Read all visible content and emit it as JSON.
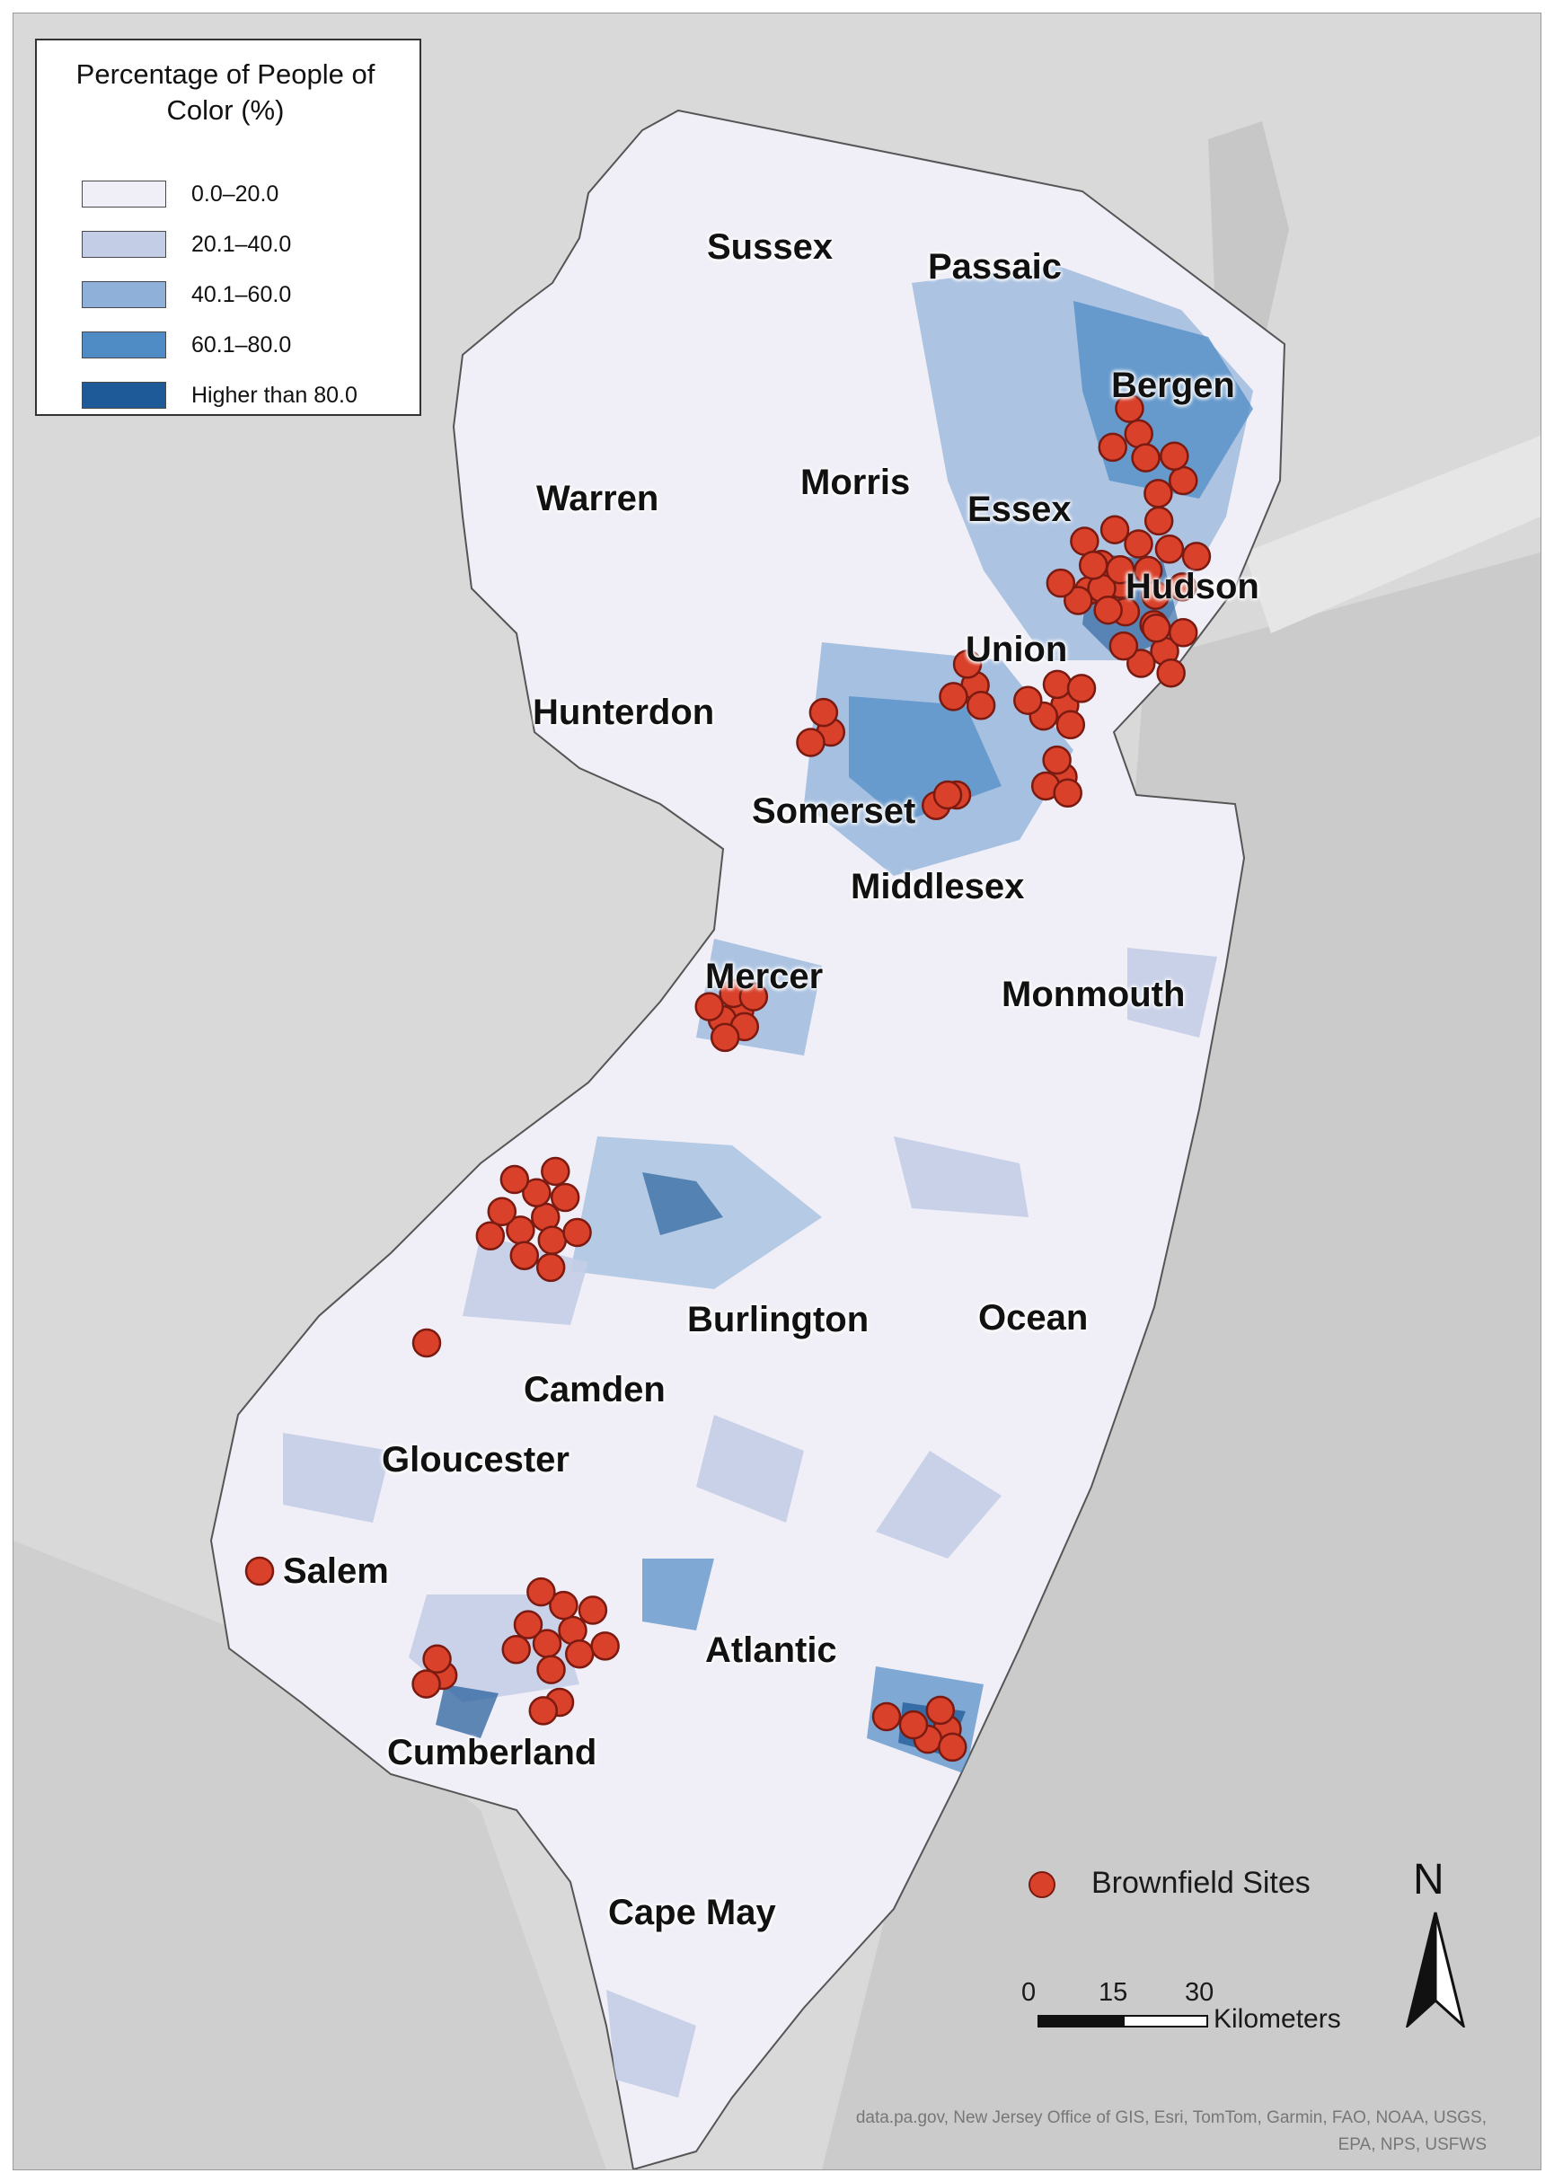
{
  "legend": {
    "title": "Percentage of People of Color (%)",
    "classes": [
      {
        "label": "0.0–20.0",
        "color": "#f0eff7"
      },
      {
        "label": "20.1–40.0",
        "color": "#c3cde6"
      },
      {
        "label": "40.1–60.0",
        "color": "#8eb0d9"
      },
      {
        "label": "60.1–80.0",
        "color": "#4f8cc5"
      },
      {
        "label": "Higher than 80.0",
        "color": "#1f5a98"
      }
    ]
  },
  "counties": {
    "sussex": "Sussex",
    "passaic": "Passaic",
    "bergen": "Bergen",
    "warren": "Warren",
    "morris": "Morris",
    "essex": "Essex",
    "hudson": "Hudson",
    "union": "Union",
    "hunterdon": "Hunterdon",
    "somerset": "Somerset",
    "middlesex": "Middlesex",
    "mercer": "Mercer",
    "monmouth": "Monmouth",
    "burlington": "Burlington",
    "ocean": "Ocean",
    "camden": "Camden",
    "gloucester": "Gloucester",
    "salem": "Salem",
    "atlantic": "Atlantic",
    "cumberland": "Cumberland",
    "cape_may": "Cape May"
  },
  "site_legend": {
    "label": "Brownfield Sites",
    "color": "#d9412b"
  },
  "scale": {
    "ticks": [
      "0",
      "15",
      "30"
    ],
    "unit": "Kilometers"
  },
  "north_label": "N",
  "attribution": {
    "line1": "data.pa.gov, New Jersey Office of GIS, Esri, TomTom, Garmin, FAO, NOAA, USGS,",
    "line2": "EPA, NPS, USFWS"
  },
  "colors": {
    "land": "#f0eff7",
    "ocean": "#cdcdcd",
    "surrounding_land": "#dadada",
    "site_fill": "#d9412b",
    "site_stroke": "#7a1a10"
  }
}
